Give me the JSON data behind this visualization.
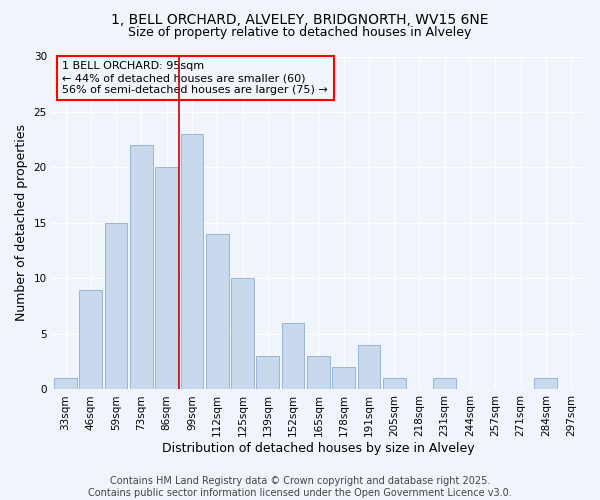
{
  "title_line1": "1, BELL ORCHARD, ALVELEY, BRIDGNORTH, WV15 6NE",
  "title_line2": "Size of property relative to detached houses in Alveley",
  "xlabel": "Distribution of detached houses by size in Alveley",
  "ylabel": "Number of detached properties",
  "bar_labels": [
    "33sqm",
    "46sqm",
    "59sqm",
    "73sqm",
    "86sqm",
    "99sqm",
    "112sqm",
    "125sqm",
    "139sqm",
    "152sqm",
    "165sqm",
    "178sqm",
    "191sqm",
    "205sqm",
    "218sqm",
    "231sqm",
    "244sqm",
    "257sqm",
    "271sqm",
    "284sqm",
    "297sqm"
  ],
  "bar_values": [
    1,
    9,
    15,
    22,
    20,
    23,
    14,
    10,
    3,
    6,
    3,
    2,
    4,
    1,
    0,
    1,
    0,
    0,
    0,
    1,
    0
  ],
  "bar_color": "#c8d9ee",
  "bar_edgecolor": "#9ab5d5",
  "vline_x": 4.5,
  "vline_color": "#cc0000",
  "annotation_box_text": "1 BELL ORCHARD: 95sqm\n← 44% of detached houses are smaller (60)\n56% of semi-detached houses are larger (75) →",
  "ylim": [
    0,
    30
  ],
  "yticks": [
    0,
    5,
    10,
    15,
    20,
    25,
    30
  ],
  "footer_text": "Contains HM Land Registry data © Crown copyright and database right 2025.\nContains public sector information licensed under the Open Government Licence v3.0.",
  "background_color": "#f0f4fb",
  "plot_background_color": "#f0f4fb",
  "title_fontsize": 10,
  "subtitle_fontsize": 9,
  "axis_label_fontsize": 9,
  "tick_fontsize": 7.5,
  "annotation_fontsize": 8,
  "footer_fontsize": 7
}
